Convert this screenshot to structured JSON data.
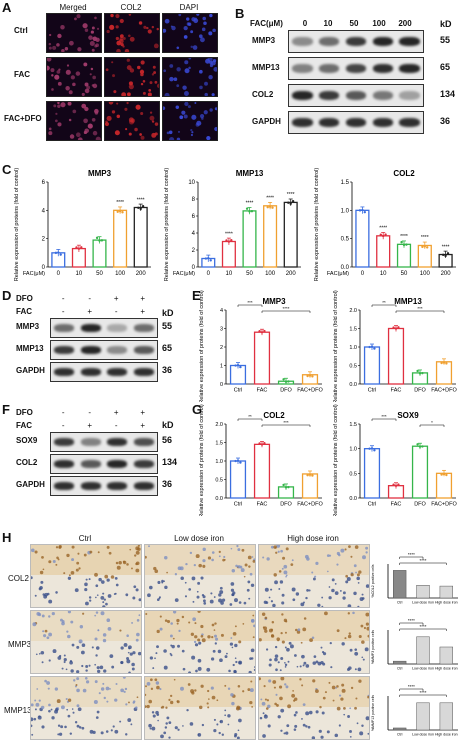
{
  "panels": {
    "A": "A",
    "B": "B",
    "C": "C",
    "D": "D",
    "E": "E",
    "F": "F",
    "G": "G",
    "H": "H"
  },
  "panelA": {
    "columns": [
      "Merged",
      "COL2",
      "DAPI"
    ],
    "rows": [
      "Ctrl",
      "FAC",
      "FAC+DFO"
    ],
    "colors": {
      "merged": "#a03a6a",
      "col2": "#c8262a",
      "dapi": "#3a4ad8"
    }
  },
  "panelB": {
    "header_label": "FAC(μM)",
    "concentrations": [
      "0",
      "10",
      "50",
      "100",
      "200"
    ],
    "kd_header": "kD",
    "rows": [
      {
        "name": "MMP3",
        "kd": "55",
        "intensity": [
          0.45,
          0.6,
          0.85,
          0.95,
          0.95
        ]
      },
      {
        "name": "MMP13",
        "kd": "65",
        "intensity": [
          0.5,
          0.6,
          0.8,
          0.9,
          0.95
        ]
      },
      {
        "name": "COL2",
        "kd": "134",
        "intensity": [
          0.95,
          0.85,
          0.7,
          0.55,
          0.35
        ]
      },
      {
        "name": "GAPDH",
        "kd": "36",
        "intensity": [
          0.9,
          0.9,
          0.9,
          0.9,
          0.9
        ]
      }
    ]
  },
  "panelD": {
    "treatments": [
      {
        "name": "DFO",
        "signs": [
          "-",
          "-",
          "+",
          "+"
        ]
      },
      {
        "name": "FAC",
        "signs": [
          "-",
          "+",
          "-",
          "+"
        ]
      }
    ],
    "kd_header": "kD",
    "rows": [
      {
        "name": "MMP3",
        "kd": "55",
        "intensity": [
          0.6,
          0.95,
          0.3,
          0.6
        ]
      },
      {
        "name": "MMP13",
        "kd": "65",
        "intensity": [
          0.85,
          0.95,
          0.45,
          0.7
        ]
      },
      {
        "name": "GAPDH",
        "kd": "36",
        "intensity": [
          0.9,
          0.9,
          0.9,
          0.9
        ]
      }
    ]
  },
  "panelF": {
    "treatments": [
      {
        "name": "DFO",
        "signs": [
          "-",
          "-",
          "+",
          "+"
        ]
      },
      {
        "name": "FAC",
        "signs": [
          "-",
          "+",
          "-",
          "+"
        ]
      }
    ],
    "kd_header": "kD",
    "rows": [
      {
        "name": "SOX9",
        "kd": "56",
        "intensity": [
          0.85,
          0.5,
          0.9,
          0.75
        ]
      },
      {
        "name": "COL2",
        "kd": "134",
        "intensity": [
          0.9,
          0.7,
          0.95,
          0.85
        ]
      },
      {
        "name": "GAPDH",
        "kd": "36",
        "intensity": [
          0.9,
          0.9,
          0.9,
          0.9
        ]
      }
    ]
  },
  "panelH": {
    "columns": [
      "Ctrl",
      "Low dose iron",
      "High dose iron"
    ],
    "rows": [
      "COL2",
      "MMP3",
      "MMP13"
    ],
    "ylabels": [
      "%COL2 positive cells",
      "%MMP3 positive cells",
      "%MMP13 positive cells"
    ],
    "categories": [
      "Ctrl",
      "Low dose iron",
      "High dose iron"
    ],
    "sig": "****"
  },
  "chart_data": [
    {
      "id": "C1",
      "type": "bar",
      "title": "MMP3",
      "ylabel": "Relative expression of proteins (fold of control)",
      "xprefix": "FAC(μM)",
      "categories": [
        "0",
        "10",
        "50",
        "100",
        "200"
      ],
      "values": [
        1.0,
        1.3,
        1.9,
        4.0,
        4.2
      ],
      "ylim": [
        0,
        6
      ],
      "yticks": [
        0,
        2,
        4,
        6
      ],
      "sig": [
        "",
        "",
        "",
        "****",
        "****"
      ],
      "colors": [
        "#3b6ee0",
        "#e03040",
        "#35b54a",
        "#f0a030",
        "#222222"
      ]
    },
    {
      "id": "C2",
      "type": "bar",
      "title": "MMP13",
      "ylabel": "Relative expression of proteins (fold of control)",
      "xprefix": "FAC(μM)",
      "categories": [
        "0",
        "10",
        "50",
        "100",
        "200"
      ],
      "values": [
        1.0,
        3.0,
        6.6,
        7.2,
        7.6
      ],
      "ylim": [
        0,
        10
      ],
      "yticks": [
        0,
        2,
        4,
        6,
        8,
        10
      ],
      "sig": [
        "",
        "****",
        "****",
        "****",
        "****"
      ],
      "colors": [
        "#3b6ee0",
        "#e03040",
        "#35b54a",
        "#f0a030",
        "#222222"
      ]
    },
    {
      "id": "C3",
      "type": "bar",
      "title": "COL2",
      "ylabel": "Relative expression of proteins (fold of control)",
      "xprefix": "FAC(μM)",
      "categories": [
        "0",
        "10",
        "50",
        "100",
        "200"
      ],
      "values": [
        1.0,
        0.55,
        0.4,
        0.38,
        0.22
      ],
      "ylim": [
        0,
        1.5
      ],
      "yticks": [
        0.0,
        0.5,
        1.0,
        1.5
      ],
      "sig": [
        "",
        "****",
        "****",
        "****",
        "****"
      ],
      "colors": [
        "#3b6ee0",
        "#e03040",
        "#35b54a",
        "#f0a030",
        "#222222"
      ]
    },
    {
      "id": "E1",
      "type": "bar",
      "title": "MMP3",
      "ylabel": "Relative expression of proteins (fold of control)",
      "categories": [
        "Ctrl",
        "FAC",
        "DFO",
        "FAC+DFO"
      ],
      "values": [
        1.0,
        2.8,
        0.15,
        0.5
      ],
      "ylim": [
        0,
        4
      ],
      "yticks": [
        0,
        1,
        2,
        3,
        4
      ],
      "brackets": [
        {
          "from": 0,
          "to": 1,
          "label": "***"
        },
        {
          "from": 1,
          "to": 3,
          "label": "****"
        }
      ],
      "colors": [
        "#3b6ee0",
        "#e03040",
        "#35b54a",
        "#f0a030"
      ]
    },
    {
      "id": "E2",
      "type": "bar",
      "title": "MMP13",
      "ylabel": "Relative expression of proteins (fold of control)",
      "categories": [
        "Ctrl",
        "FAC",
        "DFO",
        "FAC+DFO"
      ],
      "values": [
        1.0,
        1.5,
        0.3,
        0.6
      ],
      "ylim": [
        0,
        2.0
      ],
      "yticks": [
        0.0,
        0.5,
        1.0,
        1.5,
        2.0
      ],
      "brackets": [
        {
          "from": 0,
          "to": 1,
          "label": "**"
        },
        {
          "from": 1,
          "to": 3,
          "label": "***"
        }
      ],
      "colors": [
        "#3b6ee0",
        "#e03040",
        "#35b54a",
        "#f0a030"
      ]
    },
    {
      "id": "G1",
      "type": "bar",
      "title": "COL2",
      "ylabel": "Relative expression of proteins (fold of control)",
      "categories": [
        "Ctrl",
        "FAC",
        "DFO",
        "FAC+DFO"
      ],
      "values": [
        1.0,
        1.45,
        0.3,
        0.65
      ],
      "ylim": [
        0,
        2.0
      ],
      "yticks": [
        0.0,
        0.5,
        1.0,
        1.5,
        2.0
      ],
      "brackets": [
        {
          "from": 0,
          "to": 1,
          "label": "**"
        },
        {
          "from": 1,
          "to": 3,
          "label": "***"
        }
      ],
      "colors": [
        "#3b6ee0",
        "#e03040",
        "#35b54a",
        "#f0a030"
      ]
    },
    {
      "id": "G2",
      "type": "bar",
      "title": "SOX9",
      "ylabel": "Relative expression of proteins (fold of control)",
      "categories": [
        "Ctrl",
        "FAC",
        "DFO",
        "FAC+DFO"
      ],
      "values": [
        1.0,
        0.25,
        1.05,
        0.5
      ],
      "ylim": [
        0,
        1.5
      ],
      "yticks": [
        0.0,
        0.5,
        1.0,
        1.5
      ],
      "brackets": [
        {
          "from": 0,
          "to": 1,
          "label": "***"
        },
        {
          "from": 2,
          "to": 3,
          "label": "*"
        }
      ],
      "colors": [
        "#3b6ee0",
        "#e03040",
        "#35b54a",
        "#f0a030"
      ]
    },
    {
      "id": "H1",
      "type": "bar",
      "title": "",
      "ylabel": "%COL2 positive cells",
      "categories": [
        "Ctrl",
        "Low dose iron",
        "High dose iron"
      ],
      "values": [
        65,
        30,
        28
      ],
      "ylim": [
        0,
        80
      ],
      "brackets": [
        {
          "from": 0,
          "to": 1,
          "label": "****"
        },
        {
          "from": 0,
          "to": 2,
          "label": "****"
        }
      ],
      "colors": [
        "#888888",
        "#d8d8d8",
        "#d8d8d8"
      ]
    },
    {
      "id": "H2",
      "type": "bar",
      "title": "",
      "ylabel": "%MMP3 positive cells",
      "categories": [
        "Ctrl",
        "Low dose iron",
        "High dose iron"
      ],
      "values": [
        5,
        48,
        30
      ],
      "ylim": [
        0,
        60
      ],
      "brackets": [
        {
          "from": 0,
          "to": 1,
          "label": "****"
        },
        {
          "from": 0,
          "to": 2,
          "label": "****"
        }
      ],
      "colors": [
        "#888888",
        "#d8d8d8",
        "#d8d8d8"
      ]
    },
    {
      "id": "H3",
      "type": "bar",
      "title": "",
      "ylabel": "%MMP13 positive cells",
      "categories": [
        "Ctrl",
        "Low dose iron",
        "High dose iron"
      ],
      "values": [
        3,
        40,
        40
      ],
      "ylim": [
        0,
        50
      ],
      "brackets": [
        {
          "from": 0,
          "to": 1,
          "label": "****"
        },
        {
          "from": 0,
          "to": 2,
          "label": "****"
        }
      ],
      "colors": [
        "#888888",
        "#d8d8d8",
        "#d8d8d8"
      ]
    }
  ]
}
